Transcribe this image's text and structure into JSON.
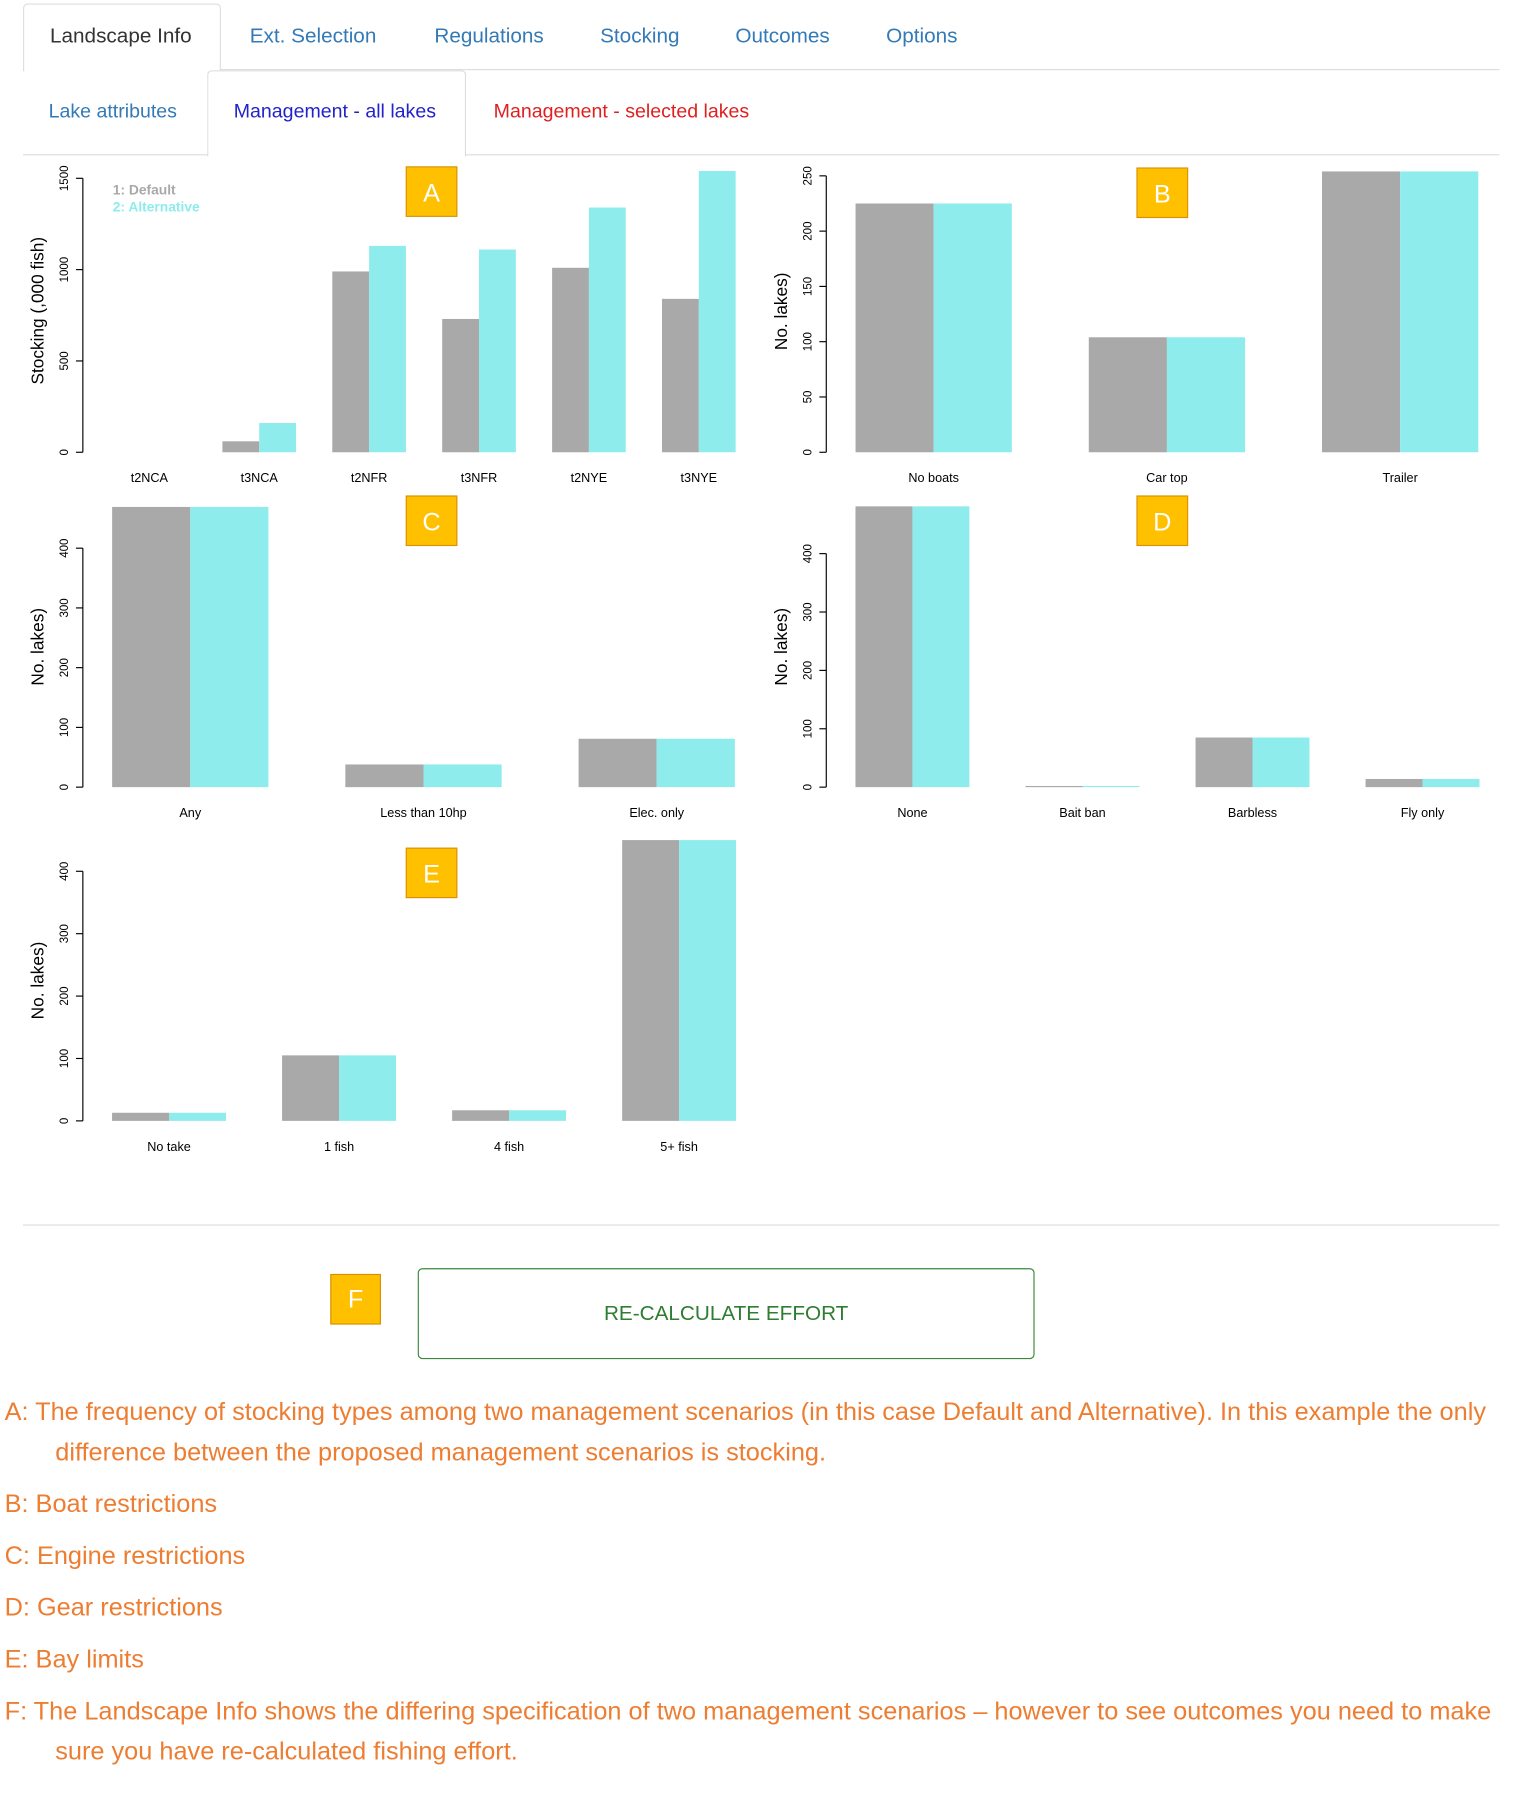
{
  "tabs": [
    "Landscape Info",
    "Ext. Selection",
    "Regulations",
    "Stocking",
    "Outcomes",
    "Options"
  ],
  "subtabs": [
    "Lake attributes",
    "Management - all lakes",
    "Management - selected lakes"
  ],
  "markers": [
    "A",
    "B",
    "C",
    "D",
    "E",
    "F"
  ],
  "button": "RE-CALCULATE EFFORT",
  "captions": [
    "A: The frequency of stocking types among two management scenarios (in this case Default and Alternative). In this example the only difference between the proposed management scenarios is stocking.",
    "B: Boat restrictions",
    "C: Engine restrictions",
    "D: Gear restrictions",
    "E: Bay limits",
    "F: The Landscape Info shows the differing specification of two management scenarios – however to see outcomes you need to make sure you have re-calculated fishing effort."
  ],
  "chart_data": [
    {
      "type": "bar",
      "y_label": "Stocking (,000 fish)",
      "legend": "top-left",
      "categories": [
        "t2NCA",
        "t3NCA",
        "t2NFR",
        "t3NFR",
        "t2NYE",
        "t3NYE"
      ],
      "series": [
        {
          "name": "1: Default",
          "color": "#a9a9a9",
          "values": [
            0,
            60,
            990,
            730,
            1010,
            840
          ]
        },
        {
          "name": "2: Alternative",
          "color": "#8eecec",
          "values": [
            0,
            160,
            1130,
            1110,
            1340,
            1540
          ]
        }
      ],
      "ylim": [
        0,
        1550
      ],
      "yticks": [
        0,
        500,
        1000,
        1500
      ]
    },
    {
      "type": "bar",
      "y_label": "No. lakes)",
      "categories": [
        "No boats",
        "Car top",
        "Trailer"
      ],
      "series": [
        {
          "color": "#a9a9a9",
          "values": [
            225,
            104,
            254
          ]
        },
        {
          "color": "#8eecec",
          "values": [
            225,
            104,
            254
          ]
        }
      ],
      "ylim": [
        0,
        255
      ],
      "yticks": [
        0,
        50,
        100,
        150,
        200,
        250
      ]
    },
    {
      "type": "bar",
      "y_label": "No. lakes)",
      "categories": [
        "Any",
        "Less than 10hp",
        "Elec. only"
      ],
      "series": [
        {
          "color": "#a9a9a9",
          "values": [
            469,
            38,
            81
          ]
        },
        {
          "color": "#8eecec",
          "values": [
            469,
            38,
            81
          ]
        }
      ],
      "ylim": [
        0,
        470
      ],
      "yticks": [
        0,
        100,
        200,
        300,
        400
      ]
    },
    {
      "type": "bar",
      "y_label": "No. lakes)",
      "categories": [
        "None",
        "Bait ban",
        "Barbless",
        "Fly only"
      ],
      "series": [
        {
          "color": "#a9a9a9",
          "values": [
            481,
            2,
            85,
            14
          ]
        },
        {
          "color": "#8eecec",
          "values": [
            481,
            2,
            85,
            14
          ]
        }
      ],
      "ylim": [
        0,
        481
      ],
      "yticks": [
        0,
        100,
        200,
        300,
        400
      ]
    },
    {
      "type": "bar",
      "y_label": "No. lakes)",
      "categories": [
        "No take",
        "1 fish",
        "4 fish",
        "5+ fish"
      ],
      "series": [
        {
          "color": "#a9a9a9",
          "values": [
            13,
            105,
            17,
            450
          ]
        },
        {
          "color": "#8eecec",
          "values": [
            13,
            105,
            17,
            450
          ]
        }
      ],
      "ylim": [
        0,
        450
      ],
      "yticks": [
        0,
        100,
        200,
        300,
        400
      ]
    }
  ]
}
